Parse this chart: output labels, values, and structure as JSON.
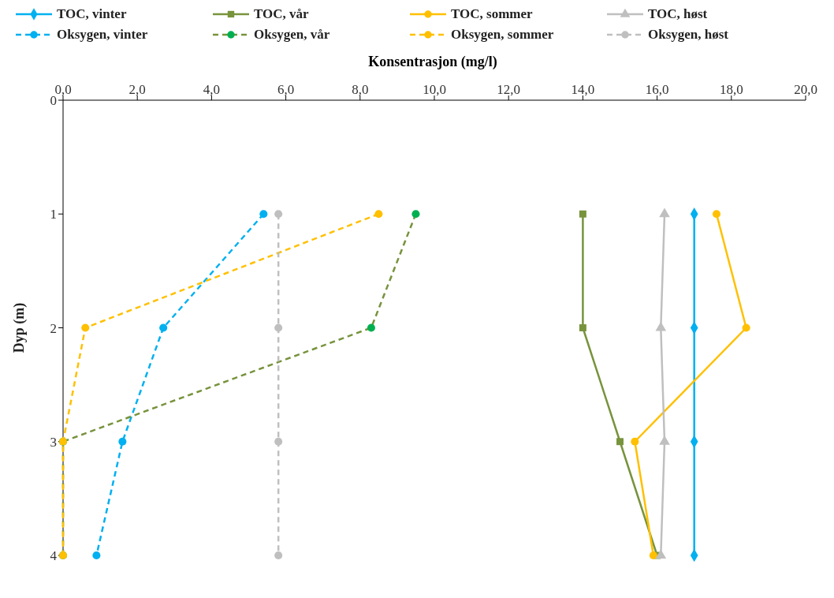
{
  "chart_data": {
    "type": "line",
    "orientation": "horizontal",
    "xlabel": "Konsentrasjon (mg/l)",
    "ylabel": "Dyp (m)",
    "x": [
      1,
      2,
      3,
      4
    ],
    "xlim": [
      0,
      20
    ],
    "xticks": [
      {
        "value": 0,
        "label": "0,0"
      },
      {
        "value": 2,
        "label": "2,0"
      },
      {
        "value": 4,
        "label": "4,0"
      },
      {
        "value": 6,
        "label": "6,0"
      },
      {
        "value": 8,
        "label": "8,0"
      },
      {
        "value": 10,
        "label": "10,0"
      },
      {
        "value": 12,
        "label": "12,0"
      },
      {
        "value": 14,
        "label": "14,0"
      },
      {
        "value": 16,
        "label": "16,0"
      },
      {
        "value": 18,
        "label": "18,0"
      },
      {
        "value": 20,
        "label": "20,0"
      }
    ],
    "ylim": [
      4,
      0
    ],
    "yticks": [
      0,
      1,
      2,
      3,
      4
    ],
    "grid": false,
    "legend": "top",
    "series": [
      {
        "name": "TOC, vinter",
        "color": "#00b0f0",
        "marker": "diamond",
        "line_style": "solid",
        "values": [
          17.0,
          17.0,
          17.0,
          17.0
        ]
      },
      {
        "name": "TOC, vår",
        "color": "#77933c",
        "marker": "square",
        "line_style": "solid",
        "values": [
          14.0,
          14.0,
          15.0,
          16.0
        ]
      },
      {
        "name": "TOC, sommer",
        "color": "#ffc000",
        "marker": "circle",
        "line_style": "solid",
        "values": [
          17.6,
          18.4,
          15.4,
          15.9
        ]
      },
      {
        "name": "TOC, høst",
        "color": "#bfbfbf",
        "marker": "triangle",
        "line_style": "solid",
        "values": [
          16.2,
          16.1,
          16.2,
          16.1
        ]
      },
      {
        "name": "Oksygen, vinter",
        "color": "#00b0f0",
        "marker": "circle",
        "line_style": "dashed",
        "values": [
          5.4,
          2.7,
          1.6,
          0.9
        ]
      },
      {
        "name": "Oksygen, vår",
        "color": "#77933c",
        "colors": [
          "#00b050",
          "#00b050",
          "#00b050",
          "#00b050"
        ],
        "marker": "circle",
        "line_style": "dashed",
        "values": [
          9.5,
          8.3,
          0.0,
          0.0
        ]
      },
      {
        "name": "Oksygen, sommer",
        "color": "#ffc000",
        "marker": "circle",
        "line_style": "dashed",
        "values": [
          8.5,
          0.6,
          0.0,
          0.0
        ]
      },
      {
        "name": "Oksygen, høst",
        "color": "#bfbfbf",
        "marker": "circle",
        "line_style": "dashed",
        "values": [
          5.8,
          5.8,
          5.8,
          5.8
        ]
      }
    ]
  }
}
